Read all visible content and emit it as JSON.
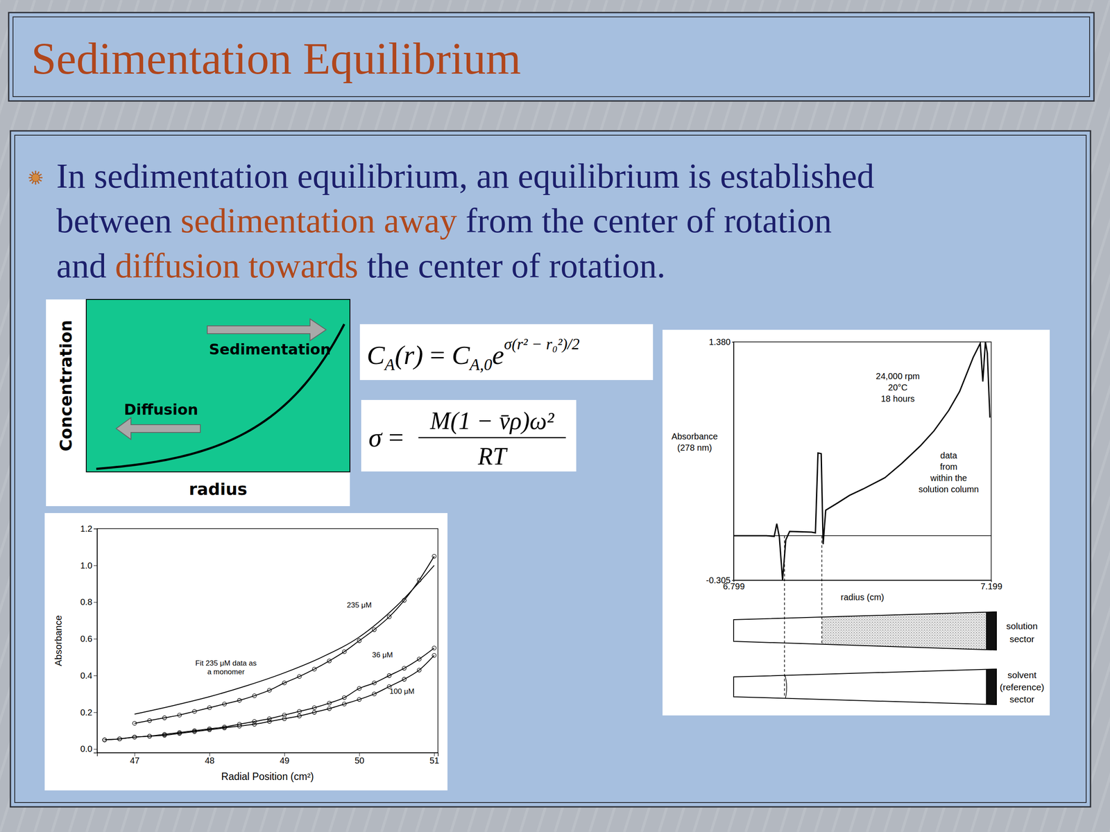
{
  "slide": {
    "title": "Sedimentation Equilibrium",
    "bullet": [
      [
        {
          "text": "In sedimentation equilibrium, an equilibrium is established",
          "color": "#1c1f6b"
        }
      ],
      [
        {
          "text": "between ",
          "color": "#1c1f6b"
        },
        {
          "text": "sedimentation away",
          "color": "#b0491d"
        },
        {
          "text": " from the center of rotation",
          "color": "#1c1f6b"
        }
      ],
      [
        {
          "text": "and ",
          "color": "#1c1f6b"
        },
        {
          "text": "diffusion towards",
          "color": "#b0491d"
        },
        {
          "text": " the center of rotation.",
          "color": "#1c1f6b"
        }
      ]
    ]
  },
  "schematic": {
    "ylabel": "Concentration",
    "xlabel": "radius",
    "arrows": [
      "Sedimentation",
      "Diffusion"
    ]
  },
  "equations": [
    {
      "lhs": "C",
      "lhs_sub": "A",
      "lhs_arg": "(r)",
      "relation": "=",
      "rhs": "C",
      "rhs_sub": "A,0",
      "base": "e",
      "exponent": "σ(r² − r₀²)/2"
    },
    {
      "lhs": "σ",
      "relation": "=",
      "numerator": "M(1 − v̄ρ)ω²",
      "denominator": "RT"
    }
  ],
  "chart_data": [
    {
      "type": "scatter",
      "xlabel": "Radial Position (cm²)",
      "ylabel": "Absorbance",
      "xlim": [
        46.5,
        51.05
      ],
      "ylim": [
        -0.02,
        1.2
      ],
      "xticks": [
        47,
        48,
        49,
        50,
        51
      ],
      "yticks": [
        {
          "value": 0,
          "label": "0.0"
        },
        0.2,
        0.4,
        0.6,
        0.8,
        {
          "value": 1,
          "label": "1.0"
        },
        1.2
      ],
      "series": [
        {
          "x": [
            47.0,
            47.2,
            47.4,
            47.6,
            47.8,
            48.0,
            48.2,
            48.4,
            48.6,
            48.8,
            49.0,
            49.2,
            49.4,
            49.6,
            49.8,
            50.0,
            50.2,
            50.4,
            50.6,
            50.8,
            51.0
          ],
          "values": [
            0.14,
            0.155,
            0.17,
            0.185,
            0.205,
            0.225,
            0.245,
            0.265,
            0.29,
            0.32,
            0.36,
            0.395,
            0.435,
            0.48,
            0.53,
            0.59,
            0.65,
            0.72,
            0.81,
            0.92,
            1.05
          ],
          "color": "#000000",
          "marker": "circle",
          "line_style": "solid"
        },
        {
          "x": [
            46.6,
            46.8,
            47.0,
            47.2,
            47.4,
            47.6,
            47.8,
            48.0,
            48.2,
            48.4,
            48.6,
            48.8,
            49.0,
            49.2,
            49.4,
            49.6,
            49.8,
            50.0,
            50.2,
            50.4,
            50.6,
            50.8,
            51.0
          ],
          "values": [
            0.05,
            0.055,
            0.065,
            0.07,
            0.08,
            0.09,
            0.1,
            0.11,
            0.12,
            0.135,
            0.15,
            0.165,
            0.185,
            0.205,
            0.225,
            0.25,
            0.28,
            0.33,
            0.36,
            0.4,
            0.44,
            0.49,
            0.55
          ],
          "color": "#000000",
          "marker": "circle",
          "line_style": "solid"
        },
        {
          "x": [
            46.6,
            46.8,
            47.0,
            47.2,
            47.4,
            47.6,
            47.8,
            48.0,
            48.2,
            48.4,
            48.6,
            48.8,
            49.0,
            49.2,
            49.4,
            49.6,
            49.8,
            50.0,
            50.2,
            50.4,
            50.6,
            50.8,
            51.0
          ],
          "values": [
            0.05,
            0.055,
            0.065,
            0.07,
            0.075,
            0.085,
            0.095,
            0.105,
            0.115,
            0.125,
            0.135,
            0.15,
            0.165,
            0.18,
            0.2,
            0.22,
            0.245,
            0.27,
            0.3,
            0.34,
            0.38,
            0.43,
            0.51
          ],
          "color": "#000000",
          "marker": "circle",
          "line_style": "solid"
        },
        {
          "x": [
            47.0,
            47.5,
            48.0,
            48.5,
            49.0,
            49.5,
            50.0,
            50.5,
            51.0
          ],
          "values": [
            0.19,
            0.235,
            0.285,
            0.345,
            0.415,
            0.5,
            0.61,
            0.78,
            1.0
          ],
          "color": "#000000",
          "marker": "none",
          "line_style": "solid"
        }
      ],
      "annotations": [
        {
          "lines": [
            "235 μM"
          ],
          "x": 50.0,
          "y": 0.77
        },
        {
          "lines": [
            "36 μM"
          ],
          "x": 50.31,
          "y": 0.5
        },
        {
          "lines": [
            "100 μM"
          ],
          "x": 50.57,
          "y": 0.3
        },
        {
          "lines": [
            "Fit 235 μM data as",
            "a monomer"
          ],
          "x": 48.22,
          "y": 0.455
        }
      ]
    },
    {
      "type": "line",
      "xlabel": "radius (cm)",
      "ylabel": [
        "Absorbance",
        "(278 nm)"
      ],
      "xlim": [
        6.799,
        7.199
      ],
      "ylim": [
        -0.305,
        1.38
      ],
      "xticks": [
        6.799,
        7.199
      ],
      "yticks": [
        -0.305,
        {
          "value": 1.38,
          "label": "1.380"
        }
      ],
      "series": [
        {
          "x": [
            6.799,
            6.85,
            6.862,
            6.866,
            6.87,
            6.875,
            6.88,
            6.886,
            6.92,
            6.926,
            6.93,
            6.935,
            6.938,
            6.942,
            6.96,
            6.979,
            7.0,
            7.034,
            7.06,
            7.089,
            7.11,
            7.133,
            7.15,
            7.171,
            7.182,
            7.186,
            7.19,
            7.193,
            7.197
          ],
          "values": [
            0.01,
            0.01,
            0.005,
            0.095,
            0.0,
            -0.305,
            -0.02,
            0.04,
            0.035,
            0.03,
            0.595,
            0.59,
            -0.05,
            0.19,
            0.24,
            0.295,
            0.34,
            0.42,
            0.52,
            0.645,
            0.75,
            0.895,
            1.03,
            1.27,
            1.37,
            1.1,
            1.38,
            1.3,
            0.845
          ],
          "color": "#000000",
          "marker": "none",
          "line_style": "solid"
        }
      ],
      "reference_line": 0.01,
      "meniscus_x": [
        6.878,
        6.936
      ],
      "annotations": [
        {
          "lines": [
            "24,000 rpm",
            "20°C",
            "18 hours"
          ],
          "x": 7.054,
          "y": 1.115
        },
        {
          "lines": [
            "data",
            "from",
            "within the",
            "solution column"
          ],
          "x": 7.133,
          "y": 0.555
        }
      ],
      "cells": {
        "solution": [
          "solution",
          "sector"
        ],
        "reference": [
          "solvent",
          "(reference)",
          "sector"
        ]
      }
    }
  ]
}
